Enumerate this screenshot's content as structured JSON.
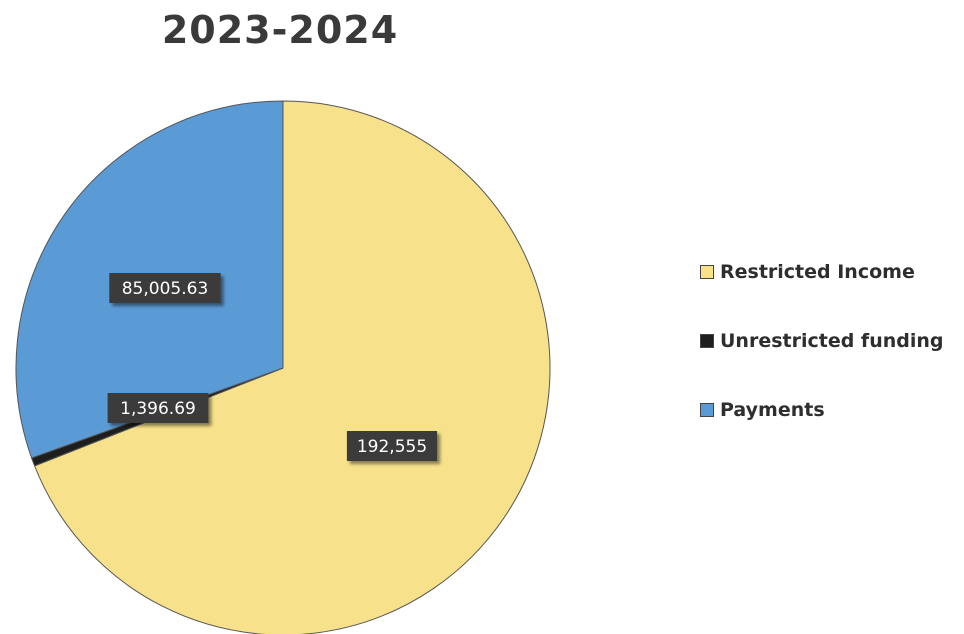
{
  "chart_data": {
    "type": "pie",
    "title": "2023-2024",
    "slices": [
      {
        "label": "Restricted Income",
        "value": 192555,
        "display": "192,555",
        "color": "#f7e18a"
      },
      {
        "label": "Unrestricted funding",
        "value": 1396.69,
        "display": "1,396.69",
        "color": "#1e1e1e"
      },
      {
        "label": "Payments",
        "value": 85005.63,
        "display": "85,005.63",
        "color": "#5b9bd5"
      }
    ],
    "legend_placement": "right",
    "start_angle": "top, clockwise"
  }
}
